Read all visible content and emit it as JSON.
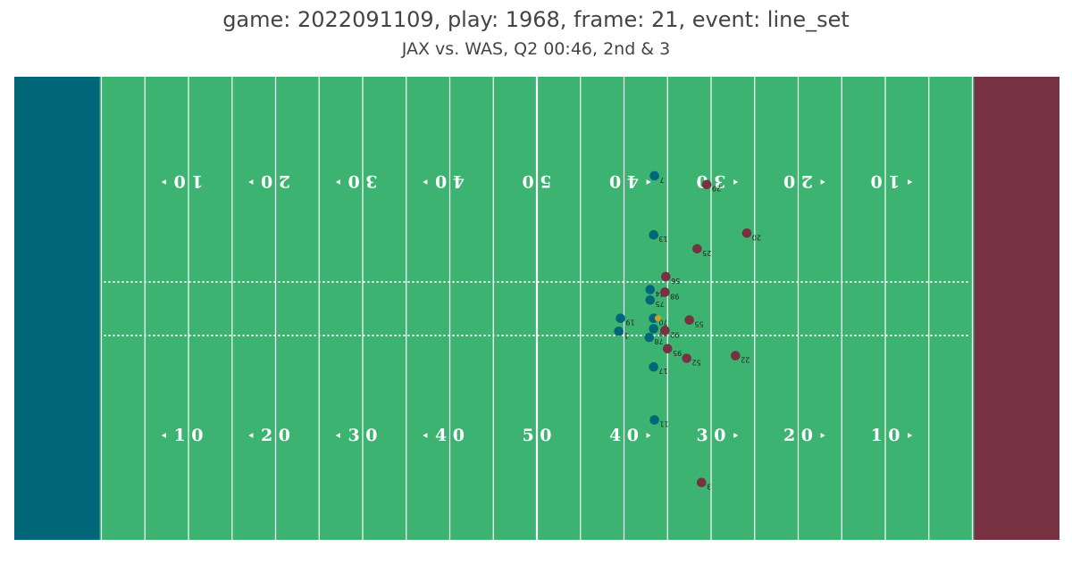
{
  "header": {
    "title": "game: 2022091109, play: 1968, frame: 21, event: line_set",
    "subtitle": "JAX vs. WAS, Q2 00:46, 2nd & 3"
  },
  "colors": {
    "field": "#3cb371",
    "home_endzone": "#006778",
    "away_endzone": "#773141",
    "home_team": "#006778",
    "away_team": "#773141",
    "football": "#d4a017"
  },
  "field": {
    "bottom_labels": [
      "1 0",
      "2 0",
      "3 0",
      "4 0",
      "5 0",
      "4 0",
      "3 0",
      "2 0",
      "1 0"
    ],
    "top_labels": [
      "1 0",
      "2 0",
      "3 0",
      "4 0",
      "5 0",
      "4 0",
      "3 0",
      "2 0",
      "1 0"
    ],
    "line_of_scrimmage_yardline": 33.5
  },
  "players": [
    {
      "team": "home",
      "jersey": "7",
      "x": 73.5,
      "y": 41.9
    },
    {
      "team": "home",
      "jersey": "13",
      "x": 73.4,
      "y": 35.1
    },
    {
      "team": "home",
      "jersey": "74",
      "x": 73.0,
      "y": 28.8
    },
    {
      "team": "home",
      "jersey": "75",
      "x": 73.0,
      "y": 27.6
    },
    {
      "team": "home",
      "jersey": "19",
      "x": 69.6,
      "y": 25.5
    },
    {
      "team": "home",
      "jersey": "70",
      "x": 73.4,
      "y": 25.5
    },
    {
      "team": "home",
      "jersey": "77",
      "x": 73.4,
      "y": 24.3
    },
    {
      "team": "home",
      "jersey": "1",
      "x": 69.4,
      "y": 24.0
    },
    {
      "team": "home",
      "jersey": "78",
      "x": 72.9,
      "y": 23.3
    },
    {
      "team": "home",
      "jersey": "17",
      "x": 73.4,
      "y": 19.9
    },
    {
      "team": "home",
      "jersey": "11",
      "x": 73.5,
      "y": 13.8
    },
    {
      "team": "away",
      "jersey": "29",
      "x": 79.5,
      "y": 40.9
    },
    {
      "team": "away",
      "jersey": "25",
      "x": 78.4,
      "y": 33.5
    },
    {
      "team": "away",
      "jersey": "20",
      "x": 84.1,
      "y": 35.3
    },
    {
      "team": "away",
      "jersey": "56",
      "x": 74.8,
      "y": 30.3
    },
    {
      "team": "away",
      "jersey": "98",
      "x": 74.7,
      "y": 28.5
    },
    {
      "team": "away",
      "jersey": "55",
      "x": 77.5,
      "y": 25.3
    },
    {
      "team": "away",
      "jersey": "92",
      "x": 74.7,
      "y": 24.1
    },
    {
      "team": "away",
      "jersey": "95",
      "x": 75.0,
      "y": 22.0
    },
    {
      "team": "away",
      "jersey": "52",
      "x": 77.2,
      "y": 20.9
    },
    {
      "team": "away",
      "jersey": "22",
      "x": 82.8,
      "y": 21.2
    },
    {
      "team": "away",
      "jersey": "3",
      "x": 78.9,
      "y": 6.6
    }
  ],
  "football": {
    "x": 73.9,
    "y": 25.5
  }
}
